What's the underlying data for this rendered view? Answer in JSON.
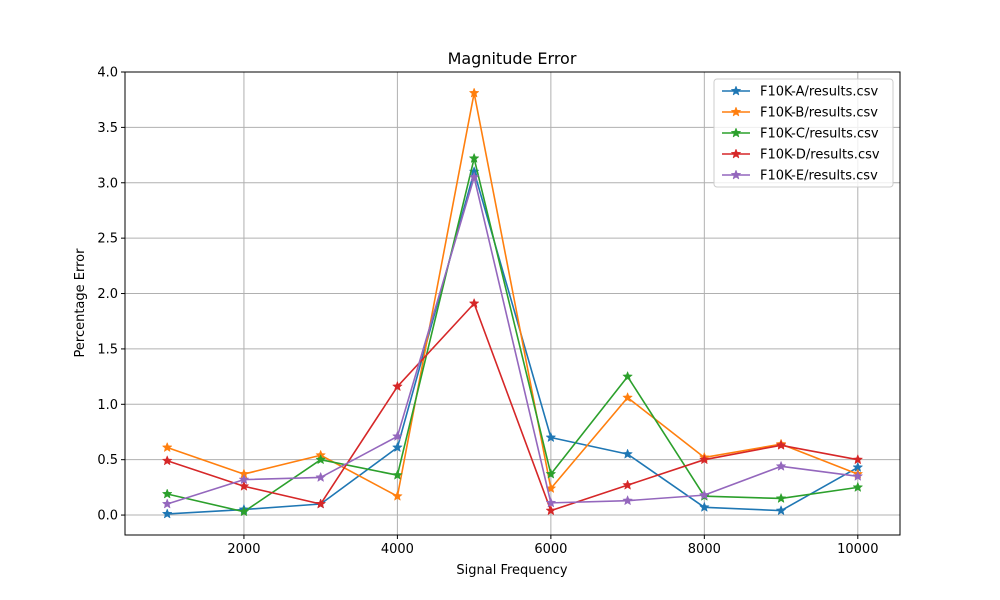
{
  "chart_data": {
    "type": "line",
    "title": "Magnitude Error",
    "xlabel": "Signal Frequency",
    "ylabel": "Percentage Error",
    "xlim": [
      450,
      10550
    ],
    "ylim": [
      -0.18,
      4.0
    ],
    "grid": true,
    "legend_position": "top-right",
    "marker": "star",
    "x": [
      1000,
      2000,
      3000,
      4000,
      5000,
      6000,
      7000,
      8000,
      9000,
      10000
    ],
    "x_ticks": [
      2000,
      4000,
      6000,
      8000,
      10000
    ],
    "x_tick_labels": [
      "2000",
      "4000",
      "6000",
      "8000",
      "10000"
    ],
    "y_ticks": [
      0.0,
      0.5,
      1.0,
      1.5,
      2.0,
      2.5,
      3.0,
      3.5,
      4.0
    ],
    "y_tick_labels": [
      "0.0",
      "0.5",
      "1.0",
      "1.5",
      "2.0",
      "2.5",
      "3.0",
      "3.5",
      "4.0"
    ],
    "series": [
      {
        "name": "F10K-A/results.csv",
        "color": "#1f77b4",
        "values": [
          0.01,
          0.05,
          0.1,
          0.61,
          3.1,
          0.7,
          0.55,
          0.07,
          0.04,
          0.43
        ]
      },
      {
        "name": "F10K-B/results.csv",
        "color": "#ff7f0e",
        "values": [
          0.61,
          0.37,
          0.54,
          0.17,
          3.81,
          0.24,
          1.06,
          0.52,
          0.64,
          0.37
        ]
      },
      {
        "name": "F10K-C/results.csv",
        "color": "#2ca02c",
        "values": [
          0.19,
          0.03,
          0.5,
          0.36,
          3.22,
          0.37,
          1.25,
          0.17,
          0.15,
          0.25
        ]
      },
      {
        "name": "F10K-D/results.csv",
        "color": "#d62728",
        "values": [
          0.49,
          0.26,
          0.1,
          1.16,
          1.91,
          0.04,
          0.27,
          0.5,
          0.63,
          0.5
        ]
      },
      {
        "name": "F10K-E/results.csv",
        "color": "#9467bd",
        "values": [
          0.1,
          0.32,
          0.34,
          0.71,
          3.05,
          0.11,
          0.13,
          0.18,
          0.44,
          0.35
        ]
      }
    ]
  }
}
